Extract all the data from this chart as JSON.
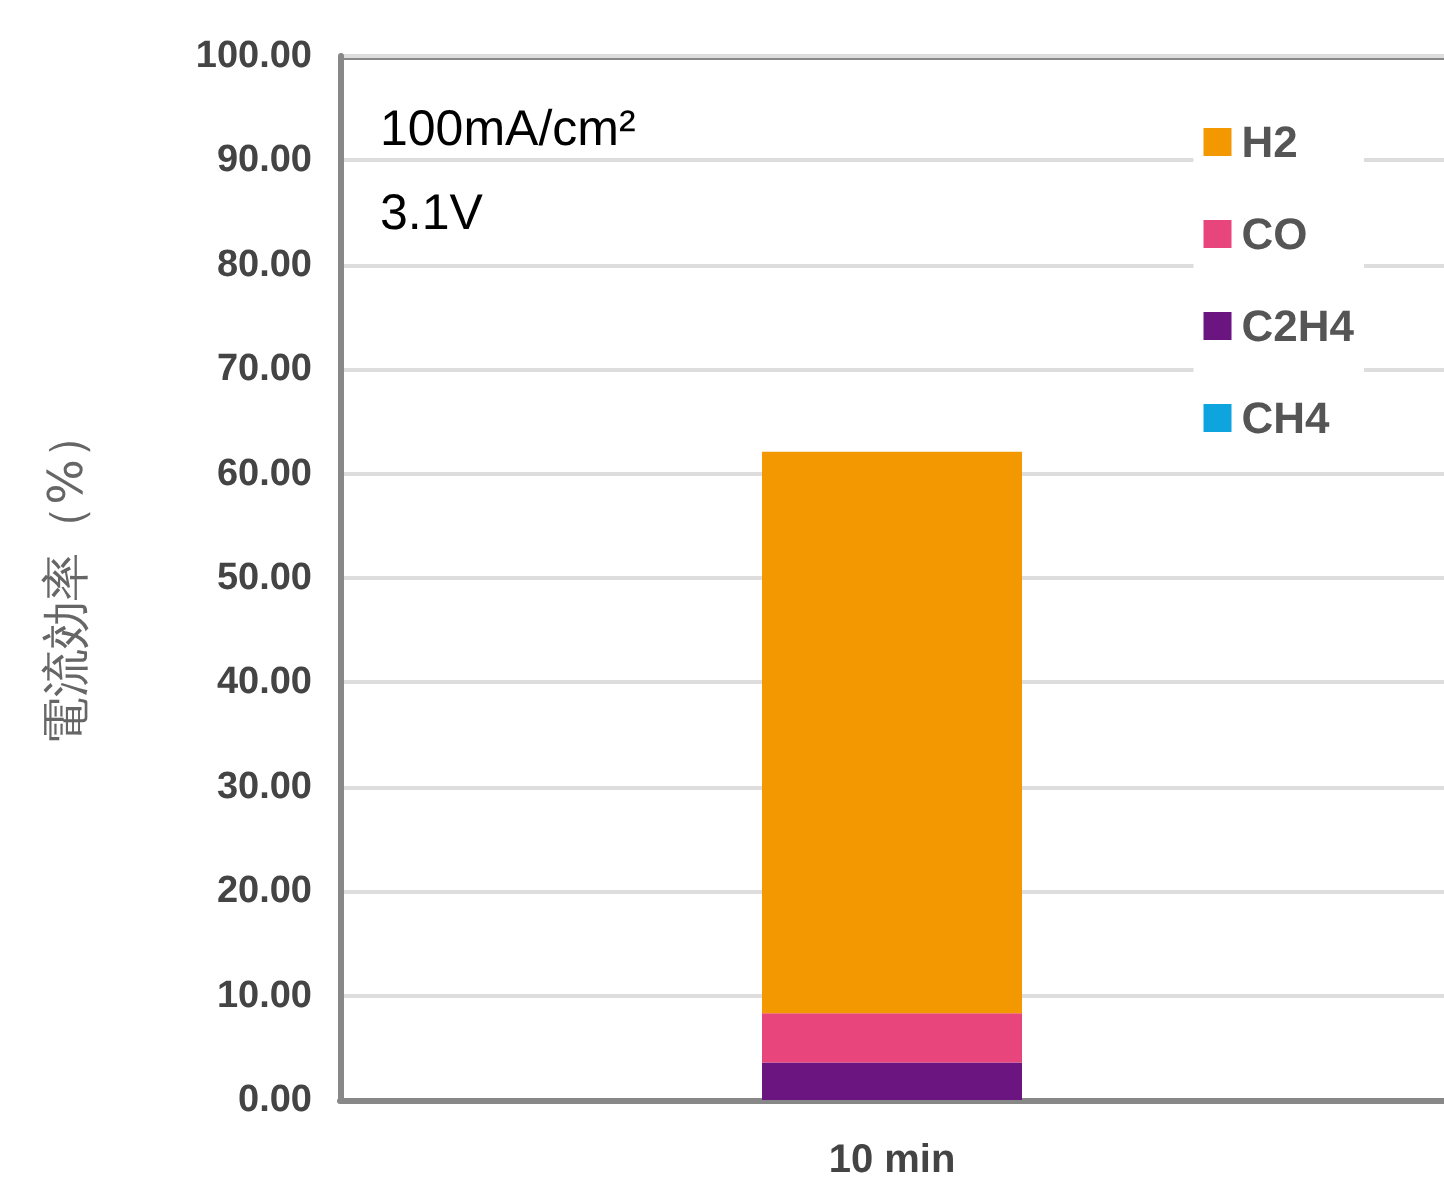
{
  "chart_data": {
    "type": "bar",
    "stacked": true,
    "categories": [
      "10 min"
    ],
    "series": [
      {
        "name": "CH4",
        "color": "#0ea5de",
        "values": [
          0
        ]
      },
      {
        "name": "C2H4",
        "color": "#6a1580",
        "values": [
          3.6
        ]
      },
      {
        "name": "CO",
        "color": "#e8457c",
        "values": [
          4.7
        ]
      },
      {
        "name": "H2",
        "color": "#f39800",
        "values": [
          53.8
        ]
      }
    ],
    "ylabel": "電流効率（%）",
    "annotations": [
      "100mA/cm²",
      "3.1V"
    ],
    "ylim": [
      0,
      100
    ],
    "yticks": [
      {
        "value": 0,
        "label": "0.00"
      },
      {
        "value": 10,
        "label": "10.00"
      },
      {
        "value": 20,
        "label": "20.00"
      },
      {
        "value": 30,
        "label": "30.00"
      },
      {
        "value": 40,
        "label": "40.00"
      },
      {
        "value": 50,
        "label": "50.00"
      },
      {
        "value": 60,
        "label": "60.00"
      },
      {
        "value": 70,
        "label": "70.00"
      },
      {
        "value": 80,
        "label": "80.00"
      },
      {
        "value": 90,
        "label": "90.00"
      },
      {
        "value": 100,
        "label": "100.00"
      }
    ],
    "grid": "y",
    "legend": "top right"
  }
}
